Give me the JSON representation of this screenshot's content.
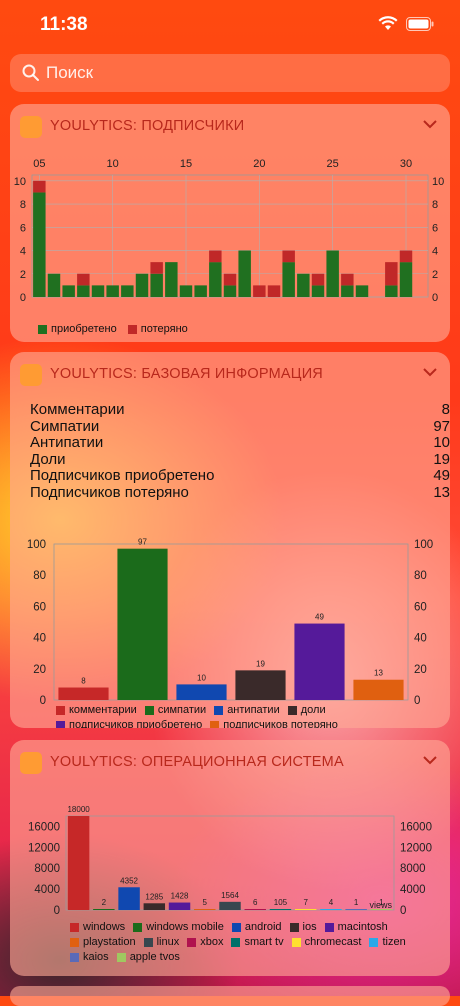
{
  "status": {
    "time": "11:38"
  },
  "search": {
    "placeholder": "Поиск"
  },
  "colors": {
    "accent": "#b8281c",
    "green": "#207020",
    "red": "#c02828"
  },
  "widgets": [
    {
      "title": "YOULYTICS: ПОДПИСЧИКИ"
    },
    {
      "title": "YOULYTICS: БАЗОВАЯ ИНФОРМАЦИЯ",
      "rows": [
        {
          "label": "Комментарии",
          "value": "8"
        },
        {
          "label": "Симпатии",
          "value": "97"
        },
        {
          "label": "Антипатии",
          "value": "10"
        },
        {
          "label": "Доли",
          "value": "19"
        },
        {
          "label": "Подписчиков приобретено",
          "value": "49"
        },
        {
          "label": "Подписчиков потеряно",
          "value": "13"
        }
      ]
    },
    {
      "title": "YOULYTICS: ОПЕРАЦИОННАЯ СИСТЕМА"
    }
  ],
  "chart_data": [
    {
      "type": "bar",
      "stacked": true,
      "x": [
        5,
        6,
        7,
        8,
        9,
        10,
        11,
        12,
        13,
        14,
        15,
        16,
        17,
        18,
        19,
        20,
        21,
        22,
        23,
        24,
        25,
        26,
        27,
        28,
        29,
        30,
        31
      ],
      "x_ticks": [
        "05",
        "10",
        "15",
        "20",
        "25",
        "30"
      ],
      "y_ticks": [
        "0",
        "2",
        "4",
        "6",
        "8",
        "10"
      ],
      "ylim": [
        0,
        10.5
      ],
      "series": [
        {
          "name": "приобретено",
          "color": "#207020",
          "values": [
            9,
            2,
            1,
            1,
            1,
            1,
            1,
            2,
            2,
            3,
            1,
            1,
            3,
            1,
            4,
            0,
            0,
            3,
            2,
            1,
            4,
            1,
            1,
            0,
            1,
            3,
            0
          ]
        },
        {
          "name": "потеряно",
          "color": "#c02828",
          "values": [
            1,
            0,
            0,
            1,
            0,
            0,
            0,
            0,
            1,
            0,
            0,
            0,
            1,
            1,
            0,
            1,
            1,
            1,
            0,
            1,
            0,
            1,
            0,
            0,
            2,
            1,
            0
          ]
        }
      ],
      "legend": "bottom-left"
    },
    {
      "type": "bar",
      "categories": [
        "комментарии",
        "симпатии",
        "антипатии",
        "доли",
        "подписчиков приобретено",
        "подписчиков потеряно"
      ],
      "values": [
        8,
        97,
        10,
        19,
        49,
        13
      ],
      "colors": [
        "#c62828",
        "#1b6b1b",
        "#1048b0",
        "#3a2a2a",
        "#551a9a",
        "#e06010"
      ],
      "y_ticks": [
        "0",
        "20",
        "40",
        "60",
        "80",
        "100"
      ],
      "ylim": [
        0,
        100
      ],
      "legend": "bottom"
    },
    {
      "type": "bar",
      "categories": [
        "windows",
        "windows mobile",
        "android",
        "ios",
        "macintosh",
        "playstation",
        "linux",
        "xbox",
        "smart tv",
        "chromecast",
        "tizen",
        "kaios",
        "apple tvos"
      ],
      "values": [
        18000,
        2,
        4352,
        1285,
        1428,
        5,
        1564,
        6,
        105,
        7,
        4,
        1,
        1
      ],
      "colors": [
        "#c62828",
        "#1b6b1b",
        "#1048b0",
        "#3a2a2a",
        "#551a9a",
        "#e06010",
        "#37474f",
        "#b0124e",
        "#00706a",
        "#ffe030",
        "#2aa8e8",
        "#5a6ab8",
        "#a0c860"
      ],
      "y_ticks": [
        "0",
        "4000",
        "8000",
        "12000",
        "16000"
      ],
      "ylim": [
        0,
        18000
      ],
      "ylabel": "views",
      "legend": "bottom"
    }
  ]
}
